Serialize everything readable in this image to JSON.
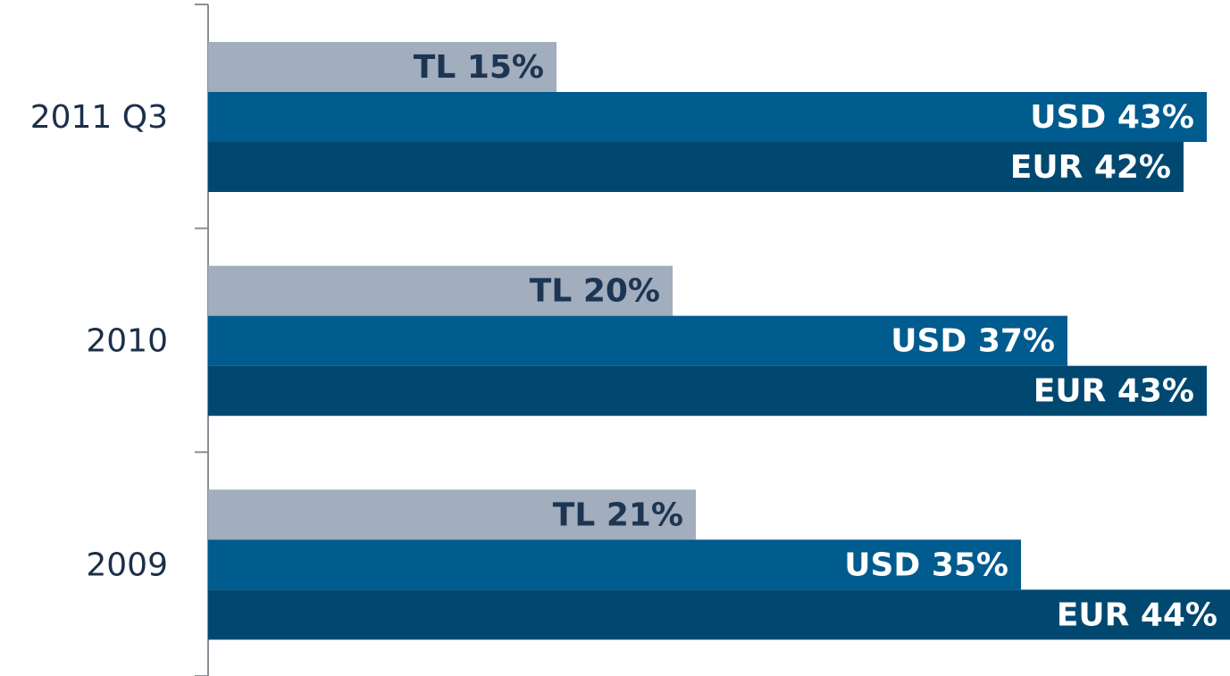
{
  "chart_data": {
    "type": "bar",
    "orientation": "horizontal",
    "categories": [
      "2011 Q3",
      "2010",
      "2009"
    ],
    "series": [
      {
        "name": "TL",
        "color": "#a2adbd",
        "label_color": "#1c3553",
        "values": [
          15,
          20,
          21
        ],
        "value_labels": [
          "TL 15%",
          "TL 20%",
          "TL 21%"
        ]
      },
      {
        "name": "USD",
        "color": "#005b8e",
        "label_color": "#ffffff",
        "values": [
          43,
          37,
          35
        ],
        "value_labels": [
          "USD 43%",
          "USD 37%",
          "USD 35%"
        ]
      },
      {
        "name": "EUR",
        "color": "#004870",
        "label_color": "#ffffff",
        "values": [
          42,
          43,
          44
        ],
        "value_labels": [
          "EUR 42%",
          "EUR 43%",
          "EUR 44%"
        ]
      }
    ],
    "xlim": [
      0,
      44
    ]
  }
}
